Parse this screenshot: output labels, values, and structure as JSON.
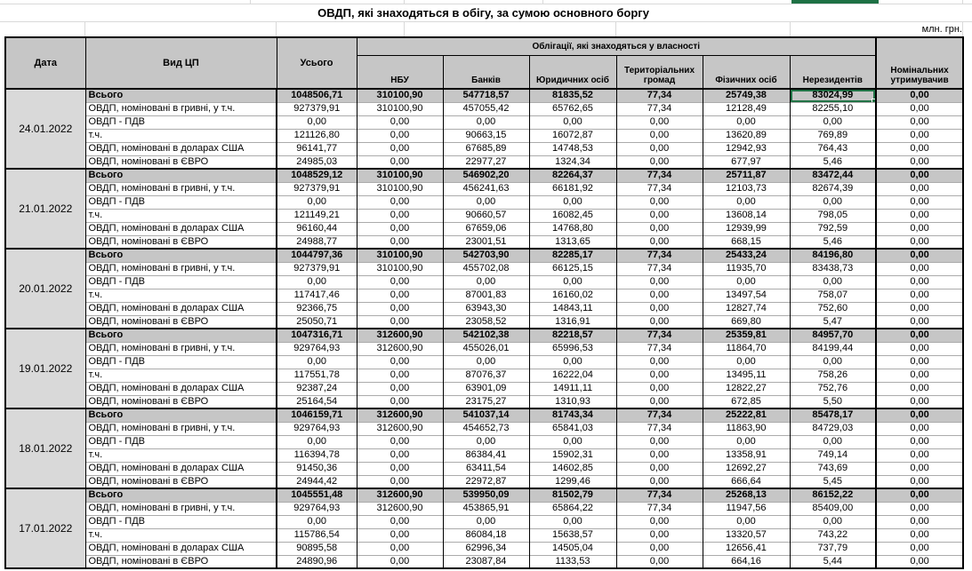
{
  "title": "ОВДП, які знаходяться в обігу, за сумою основного боргу",
  "unit_label": "млн. грн.",
  "selection_color": "#217346",
  "table": {
    "headers": {
      "date": "Дата",
      "type": "Вид ЦП",
      "total": "Усього",
      "ownership_band": "Облігації, які знаходяться у власності",
      "owners": [
        "НБУ",
        "Банків",
        "Юридичних осіб",
        "Територіальних громад",
        "Фізичних осіб",
        "Нерезидентів"
      ],
      "nominal_holders": "Номінальних утримувачив"
    },
    "row_labels": [
      "Всього",
      "ОВДП, номіновані в гривні, у т.ч.",
      "ОВДП - ПДВ",
      "т.ч.",
      "ОВДП, номіновані в доларах США",
      "ОВДП, номіновані в ЄВРО"
    ],
    "selection": {
      "block_index": 0,
      "row_index": 0,
      "value_index": 6
    },
    "blocks": [
      {
        "date": "24.01.2022",
        "rows": [
          [
            "1048506,71",
            "310100,90",
            "547718,57",
            "81835,52",
            "77,34",
            "25749,38",
            "83024,99",
            "0,00"
          ],
          [
            "927379,91",
            "310100,90",
            "457055,42",
            "65762,65",
            "77,34",
            "12128,49",
            "82255,10",
            "0,00"
          ],
          [
            "0,00",
            "0,00",
            "0,00",
            "0,00",
            "0,00",
            "0,00",
            "0,00",
            "0,00"
          ],
          [
            "121126,80",
            "0,00",
            "90663,15",
            "16072,87",
            "0,00",
            "13620,89",
            "769,89",
            "0,00"
          ],
          [
            "96141,77",
            "0,00",
            "67685,89",
            "14748,53",
            "0,00",
            "12942,93",
            "764,43",
            "0,00"
          ],
          [
            "24985,03",
            "0,00",
            "22977,27",
            "1324,34",
            "0,00",
            "677,97",
            "5,46",
            "0,00"
          ]
        ]
      },
      {
        "date": "21.01.2022",
        "rows": [
          [
            "1048529,12",
            "310100,90",
            "546902,20",
            "82264,37",
            "77,34",
            "25711,87",
            "83472,44",
            "0,00"
          ],
          [
            "927379,91",
            "310100,90",
            "456241,63",
            "66181,92",
            "77,34",
            "12103,73",
            "82674,39",
            "0,00"
          ],
          [
            "0,00",
            "0,00",
            "0,00",
            "0,00",
            "0,00",
            "0,00",
            "0,00",
            "0,00"
          ],
          [
            "121149,21",
            "0,00",
            "90660,57",
            "16082,45",
            "0,00",
            "13608,14",
            "798,05",
            "0,00"
          ],
          [
            "96160,44",
            "0,00",
            "67659,06",
            "14768,80",
            "0,00",
            "12939,99",
            "792,59",
            "0,00"
          ],
          [
            "24988,77",
            "0,00",
            "23001,51",
            "1313,65",
            "0,00",
            "668,15",
            "5,46",
            "0,00"
          ]
        ]
      },
      {
        "date": "20.01.2022",
        "rows": [
          [
            "1044797,36",
            "310100,90",
            "542703,90",
            "82285,17",
            "77,34",
            "25433,24",
            "84196,80",
            "0,00"
          ],
          [
            "927379,91",
            "310100,90",
            "455702,08",
            "66125,15",
            "77,34",
            "11935,70",
            "83438,73",
            "0,00"
          ],
          [
            "0,00",
            "0,00",
            "0,00",
            "0,00",
            "0,00",
            "0,00",
            "0,00",
            "0,00"
          ],
          [
            "117417,46",
            "0,00",
            "87001,83",
            "16160,02",
            "0,00",
            "13497,54",
            "758,07",
            "0,00"
          ],
          [
            "92366,75",
            "0,00",
            "63943,30",
            "14843,11",
            "0,00",
            "12827,74",
            "752,60",
            "0,00"
          ],
          [
            "25050,71",
            "0,00",
            "23058,52",
            "1316,91",
            "0,00",
            "669,80",
            "5,47",
            "0,00"
          ]
        ]
      },
      {
        "date": "19.01.2022",
        "rows": [
          [
            "1047316,71",
            "312600,90",
            "542102,38",
            "82218,57",
            "77,34",
            "25359,81",
            "84957,70",
            "0,00"
          ],
          [
            "929764,93",
            "312600,90",
            "455026,01",
            "65996,53",
            "77,34",
            "11864,70",
            "84199,44",
            "0,00"
          ],
          [
            "0,00",
            "0,00",
            "0,00",
            "0,00",
            "0,00",
            "0,00",
            "0,00",
            "0,00"
          ],
          [
            "117551,78",
            "0,00",
            "87076,37",
            "16222,04",
            "0,00",
            "13495,11",
            "758,26",
            "0,00"
          ],
          [
            "92387,24",
            "0,00",
            "63901,09",
            "14911,11",
            "0,00",
            "12822,27",
            "752,76",
            "0,00"
          ],
          [
            "25164,54",
            "0,00",
            "23175,27",
            "1310,93",
            "0,00",
            "672,85",
            "5,50",
            "0,00"
          ]
        ]
      },
      {
        "date": "18.01.2022",
        "rows": [
          [
            "1046159,71",
            "312600,90",
            "541037,14",
            "81743,34",
            "77,34",
            "25222,81",
            "85478,17",
            "0,00"
          ],
          [
            "929764,93",
            "312600,90",
            "454652,73",
            "65841,03",
            "77,34",
            "11863,90",
            "84729,03",
            "0,00"
          ],
          [
            "0,00",
            "0,00",
            "0,00",
            "0,00",
            "0,00",
            "0,00",
            "0,00",
            "0,00"
          ],
          [
            "116394,78",
            "0,00",
            "86384,41",
            "15902,31",
            "0,00",
            "13358,91",
            "749,14",
            "0,00"
          ],
          [
            "91450,36",
            "0,00",
            "63411,54",
            "14602,85",
            "0,00",
            "12692,27",
            "743,69",
            "0,00"
          ],
          [
            "24944,42",
            "0,00",
            "22972,87",
            "1299,46",
            "0,00",
            "666,64",
            "5,45",
            "0,00"
          ]
        ]
      },
      {
        "date": "17.01.2022",
        "rows": [
          [
            "1045551,48",
            "312600,90",
            "539950,09",
            "81502,79",
            "77,34",
            "25268,13",
            "86152,22",
            "0,00"
          ],
          [
            "929764,93",
            "312600,90",
            "453865,91",
            "65864,22",
            "77,34",
            "11947,56",
            "85409,00",
            "0,00"
          ],
          [
            "0,00",
            "0,00",
            "0,00",
            "0,00",
            "0,00",
            "0,00",
            "0,00",
            "0,00"
          ],
          [
            "115786,54",
            "0,00",
            "86084,18",
            "15638,57",
            "0,00",
            "13320,57",
            "743,22",
            "0,00"
          ],
          [
            "90895,58",
            "0,00",
            "62996,34",
            "14505,04",
            "0,00",
            "12656,41",
            "737,79",
            "0,00"
          ],
          [
            "24890,96",
            "0,00",
            "23087,84",
            "1133,53",
            "0,00",
            "664,16",
            "5,44",
            "0,00"
          ]
        ]
      }
    ]
  }
}
